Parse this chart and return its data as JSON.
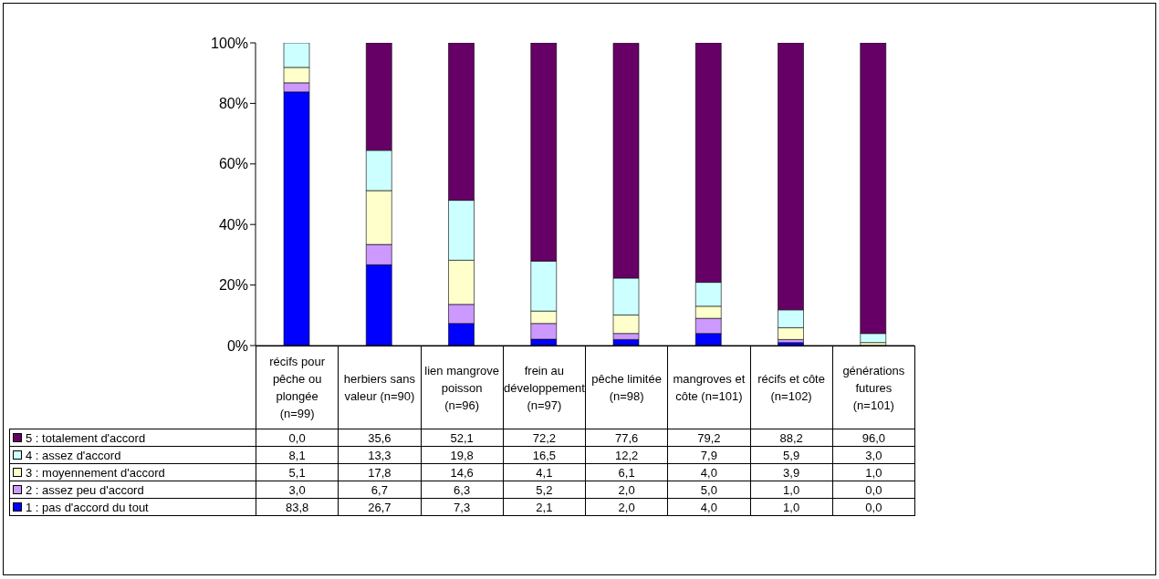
{
  "chart_data": {
    "type": "bar",
    "stacked": true,
    "categories": [
      "récifs pour pêche ou plongée (n=99)",
      "herbiers sans valeur (n=90)",
      "lien mangrove poisson (n=96)",
      "frein au développement (n=97)",
      "pêche limitée (n=98)",
      "mangroves et côte (n=101)",
      "récifs et côte (n=102)",
      "générations futures (n=101)"
    ],
    "series": [
      {
        "name": "1 : pas d'accord du tout",
        "color": "#0000ff",
        "values": [
          83.8,
          26.7,
          7.3,
          2.1,
          2.0,
          4.0,
          1.0,
          0.0
        ],
        "value_labels": [
          "83,8",
          "26,7",
          "7,3",
          "2,1",
          "2,0",
          "4,0",
          "1,0",
          "0,0"
        ]
      },
      {
        "name": "2 : assez peu d'accord",
        "color": "#cc99ff",
        "values": [
          3.0,
          6.7,
          6.3,
          5.2,
          2.0,
          5.0,
          1.0,
          0.0
        ],
        "value_labels": [
          "3,0",
          "6,7",
          "6,3",
          "5,2",
          "2,0",
          "5,0",
          "1,0",
          "0,0"
        ]
      },
      {
        "name": "3 : moyennement d'accord",
        "color": "#ffffcc",
        "values": [
          5.1,
          17.8,
          14.6,
          4.1,
          6.1,
          4.0,
          3.9,
          1.0
        ],
        "value_labels": [
          "5,1",
          "17,8",
          "14,6",
          "4,1",
          "6,1",
          "4,0",
          "3,9",
          "1,0"
        ]
      },
      {
        "name": "4 : assez d'accord",
        "color": "#ccffff",
        "values": [
          8.1,
          13.3,
          19.8,
          16.5,
          12.2,
          7.9,
          5.9,
          3.0
        ],
        "value_labels": [
          "8,1",
          "13,3",
          "19,8",
          "16,5",
          "12,2",
          "7,9",
          "5,9",
          "3,0"
        ]
      },
      {
        "name": "5 : totalement d'accord",
        "color": "#660066",
        "values": [
          0.0,
          35.6,
          52.1,
          72.2,
          77.6,
          79.2,
          88.2,
          96.0
        ],
        "value_labels": [
          "0,0",
          "35,6",
          "52,1",
          "72,2",
          "77,6",
          "79,2",
          "88,2",
          "96,0"
        ]
      }
    ],
    "ylim": [
      0,
      100
    ],
    "yticks": [
      {
        "value": 0,
        "label": "0%"
      },
      {
        "value": 20,
        "label": "20%"
      },
      {
        "value": 40,
        "label": "40%"
      },
      {
        "value": 60,
        "label": "60%"
      },
      {
        "value": 80,
        "label": "80%"
      },
      {
        "value": 100,
        "label": "100%"
      }
    ],
    "grid": false,
    "legend": "bottom"
  }
}
